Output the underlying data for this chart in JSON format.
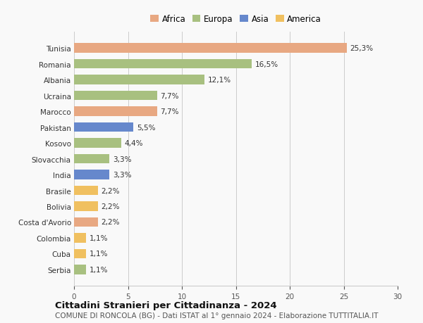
{
  "countries": [
    "Tunisia",
    "Romania",
    "Albania",
    "Ucraina",
    "Marocco",
    "Pakistan",
    "Kosovo",
    "Slovacchia",
    "India",
    "Brasile",
    "Bolivia",
    "Costa d'Avorio",
    "Colombia",
    "Cuba",
    "Serbia"
  ],
  "values": [
    25.3,
    16.5,
    12.1,
    7.7,
    7.7,
    5.5,
    4.4,
    3.3,
    3.3,
    2.2,
    2.2,
    2.2,
    1.1,
    1.1,
    1.1
  ],
  "labels": [
    "25,3%",
    "16,5%",
    "12,1%",
    "7,7%",
    "7,7%",
    "5,5%",
    "4,4%",
    "3,3%",
    "3,3%",
    "2,2%",
    "2,2%",
    "2,2%",
    "1,1%",
    "1,1%",
    "1,1%"
  ],
  "continents": [
    "Africa",
    "Europa",
    "Europa",
    "Europa",
    "Africa",
    "Asia",
    "Europa",
    "Europa",
    "Asia",
    "America",
    "America",
    "Africa",
    "America",
    "America",
    "Europa"
  ],
  "colors": {
    "Africa": "#E8A882",
    "Europa": "#A8C080",
    "Asia": "#6688CC",
    "America": "#F0C060"
  },
  "xlim": [
    0,
    30
  ],
  "xticks": [
    0,
    5,
    10,
    15,
    20,
    25,
    30
  ],
  "title": "Cittadini Stranieri per Cittadinanza - 2024",
  "subtitle": "COMUNE DI RONCOLA (BG) - Dati ISTAT al 1° gennaio 2024 - Elaborazione TUTTITALIA.IT",
  "background_color": "#f9f9f9",
  "bar_height": 0.6,
  "label_fontsize": 7.5,
  "tick_fontsize": 7.5,
  "title_fontsize": 9.5,
  "subtitle_fontsize": 7.5,
  "legend_fontsize": 8.5
}
